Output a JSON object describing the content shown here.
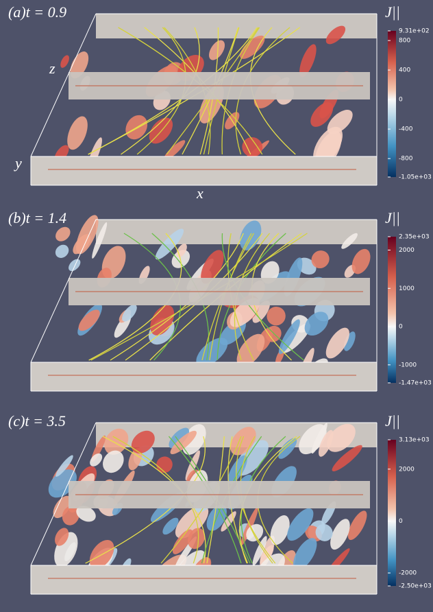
{
  "panels": [
    {
      "label": "(a)t = 0.9",
      "axis_z": "z",
      "axis_y": "y",
      "axis_x": "x",
      "colorbar": {
        "title": "J||",
        "ticks": [
          {
            "value": 931,
            "label": "9.31e+02"
          },
          800,
          400,
          0,
          -400,
          -800,
          {
            "value": -1050,
            "label": "-1.05e+03"
          }
        ]
      }
    },
    {
      "label": "(b)t = 1.4",
      "colorbar": {
        "title": "J||",
        "ticks": [
          {
            "value": 2350,
            "label": "2.35e+03"
          },
          2000,
          1000,
          0,
          -1000,
          {
            "value": -1470,
            "label": "-1.47e+03"
          }
        ]
      }
    },
    {
      "label": "(c)t = 3.5",
      "colorbar": {
        "title": "J||",
        "ticks": [
          {
            "value": 3130,
            "label": "3.13e+03"
          },
          2000,
          0,
          -2000,
          {
            "value": -2500,
            "label": "-2.50e+03"
          }
        ]
      }
    }
  ]
}
